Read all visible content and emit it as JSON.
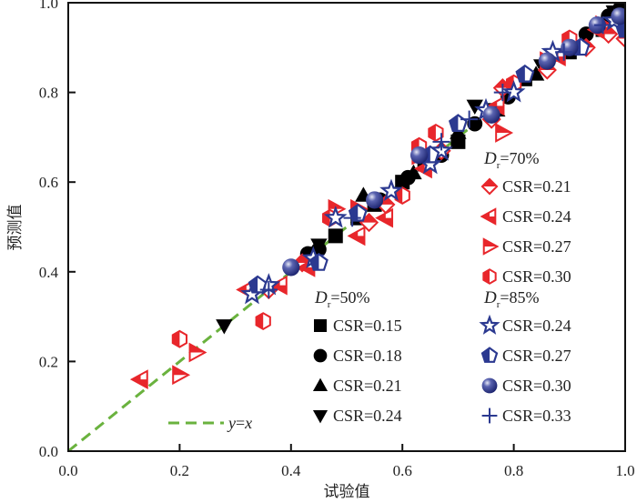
{
  "chart_data": {
    "type": "scatter",
    "title": "",
    "xlabel": "试验值",
    "ylabel": "预测值",
    "xlim": [
      0.0,
      1.0
    ],
    "ylim": [
      0.0,
      1.0
    ],
    "xticks": [
      "0.0",
      "0.2",
      "0.4",
      "0.6",
      "0.8",
      "1.0"
    ],
    "yticks": [
      "0.0",
      "0.2",
      "0.4",
      "0.6",
      "0.8",
      "1.0"
    ],
    "grid": false,
    "reference_line": {
      "label_y": "y",
      "label_eq": "=",
      "label_x": "x",
      "slope": 1,
      "intercept": 0,
      "color": "#6ab23e",
      "style": "dashed"
    },
    "colors": {
      "Dr50": "#000000",
      "Dr70": "#e8262b",
      "Dr85": "#2b3990"
    },
    "legend_groups": [
      {
        "header_sym": "D",
        "header_sub": "r",
        "header_val": "=50%",
        "placement": "center-bottom"
      },
      {
        "header_sym": "D",
        "header_sub": "r",
        "header_val": "=70%",
        "placement": "right"
      },
      {
        "header_sym": "D",
        "header_sub": "r",
        "header_val": "=85%",
        "placement": "bottom-right"
      }
    ],
    "series": [
      {
        "name": "CSR=0.15",
        "group": 0,
        "marker": "square",
        "points": [
          [
            0.44,
            0.44
          ],
          [
            0.48,
            0.48
          ],
          [
            0.52,
            0.52
          ],
          [
            0.55,
            0.55
          ],
          [
            0.6,
            0.6
          ],
          [
            0.64,
            0.64
          ],
          [
            0.7,
            0.69
          ],
          [
            0.76,
            0.76
          ],
          [
            0.82,
            0.83
          ],
          [
            0.9,
            0.89
          ],
          [
            0.96,
            0.94
          ]
        ]
      },
      {
        "name": "CSR=0.18",
        "group": 0,
        "marker": "circle",
        "points": [
          [
            0.43,
            0.44
          ],
          [
            0.45,
            0.45
          ],
          [
            0.56,
            0.56
          ],
          [
            0.61,
            0.61
          ],
          [
            0.67,
            0.66
          ],
          [
            0.73,
            0.73
          ],
          [
            0.79,
            0.79
          ],
          [
            0.86,
            0.87
          ],
          [
            0.93,
            0.93
          ],
          [
            0.97,
            0.97
          ],
          [
            1.0,
            0.99
          ]
        ]
      },
      {
        "name": "CSR=0.21",
        "group": 0,
        "marker": "triangle-up",
        "points": [
          [
            0.53,
            0.57
          ],
          [
            0.62,
            0.62
          ],
          [
            0.7,
            0.71
          ],
          [
            0.77,
            0.76
          ],
          [
            0.84,
            0.84
          ],
          [
            0.99,
            1.0
          ]
        ]
      },
      {
        "name": "CSR=0.24",
        "group": 0,
        "marker": "triangle-down",
        "points": [
          [
            0.28,
            0.28
          ],
          [
            0.45,
            0.46
          ],
          [
            0.73,
            0.77
          ],
          [
            0.85,
            0.86
          ],
          [
            0.98,
            0.98
          ]
        ]
      },
      {
        "name": "CSR=0.21",
        "group": 1,
        "marker": "diamond-half",
        "points": [
          [
            0.36,
            0.36
          ],
          [
            0.42,
            0.42
          ],
          [
            0.54,
            0.51
          ],
          [
            0.57,
            0.55
          ],
          [
            0.67,
            0.67
          ],
          [
            0.76,
            0.74
          ],
          [
            0.78,
            0.81
          ],
          [
            0.86,
            0.85
          ],
          [
            0.93,
            0.9
          ],
          [
            0.97,
            0.93
          ],
          [
            1.0,
            0.92
          ]
        ]
      },
      {
        "name": "CSR=0.24",
        "group": 1,
        "marker": "triangle-left-half",
        "points": [
          [
            0.13,
            0.16
          ],
          [
            0.32,
            0.36
          ],
          [
            0.38,
            0.37
          ],
          [
            0.43,
            0.41
          ],
          [
            0.52,
            0.48
          ],
          [
            0.57,
            0.52
          ],
          [
            0.64,
            0.63
          ],
          [
            0.77,
            0.77
          ],
          [
            0.88,
            0.88
          ],
          [
            0.95,
            0.94
          ]
        ]
      },
      {
        "name": "CSR=0.27",
        "group": 1,
        "marker": "triangle-right-half",
        "points": [
          [
            0.2,
            0.17
          ],
          [
            0.23,
            0.22
          ],
          [
            0.48,
            0.54
          ],
          [
            0.52,
            0.54
          ],
          [
            0.63,
            0.66
          ],
          [
            0.78,
            0.71
          ],
          [
            0.86,
            0.87
          ],
          [
            0.96,
            0.95
          ]
        ]
      },
      {
        "name": "CSR=0.30",
        "group": 1,
        "marker": "hexagon-half",
        "points": [
          [
            0.2,
            0.25
          ],
          [
            0.35,
            0.29
          ],
          [
            0.47,
            0.52
          ],
          [
            0.6,
            0.57
          ],
          [
            0.63,
            0.68
          ],
          [
            0.66,
            0.71
          ],
          [
            0.8,
            0.82
          ],
          [
            0.9,
            0.92
          ]
        ]
      },
      {
        "name": "CSR=0.24",
        "group": 2,
        "marker": "star",
        "points": [
          [
            0.33,
            0.35
          ],
          [
            0.36,
            0.37
          ],
          [
            0.44,
            0.43
          ],
          [
            0.48,
            0.52
          ],
          [
            0.58,
            0.58
          ],
          [
            0.65,
            0.64
          ],
          [
            0.67,
            0.67
          ],
          [
            0.75,
            0.76
          ],
          [
            0.8,
            0.8
          ],
          [
            0.87,
            0.89
          ],
          [
            0.98,
            0.96
          ]
        ]
      },
      {
        "name": "CSR=0.27",
        "group": 2,
        "marker": "pentagon",
        "points": [
          [
            0.34,
            0.37
          ],
          [
            0.45,
            0.42
          ],
          [
            0.52,
            0.53
          ],
          [
            0.65,
            0.66
          ],
          [
            0.7,
            0.73
          ],
          [
            0.82,
            0.84
          ],
          [
            0.92,
            0.9
          ],
          [
            1.0,
            0.94
          ]
        ]
      },
      {
        "name": "CSR=0.30",
        "group": 2,
        "marker": "sphere",
        "points": [
          [
            0.4,
            0.41
          ],
          [
            0.55,
            0.56
          ],
          [
            0.63,
            0.66
          ],
          [
            0.76,
            0.75
          ],
          [
            0.86,
            0.87
          ],
          [
            0.9,
            0.9
          ],
          [
            0.95,
            0.95
          ],
          [
            0.99,
            0.97
          ]
        ]
      },
      {
        "name": "CSR=0.33",
        "group": 2,
        "marker": "plus",
        "points": [
          [
            0.36,
            0.36
          ],
          [
            0.51,
            0.52
          ],
          [
            0.67,
            0.69
          ],
          [
            0.72,
            0.74
          ],
          [
            0.78,
            0.8
          ],
          [
            0.89,
            0.89
          ],
          [
            0.96,
            0.95
          ]
        ]
      }
    ]
  }
}
